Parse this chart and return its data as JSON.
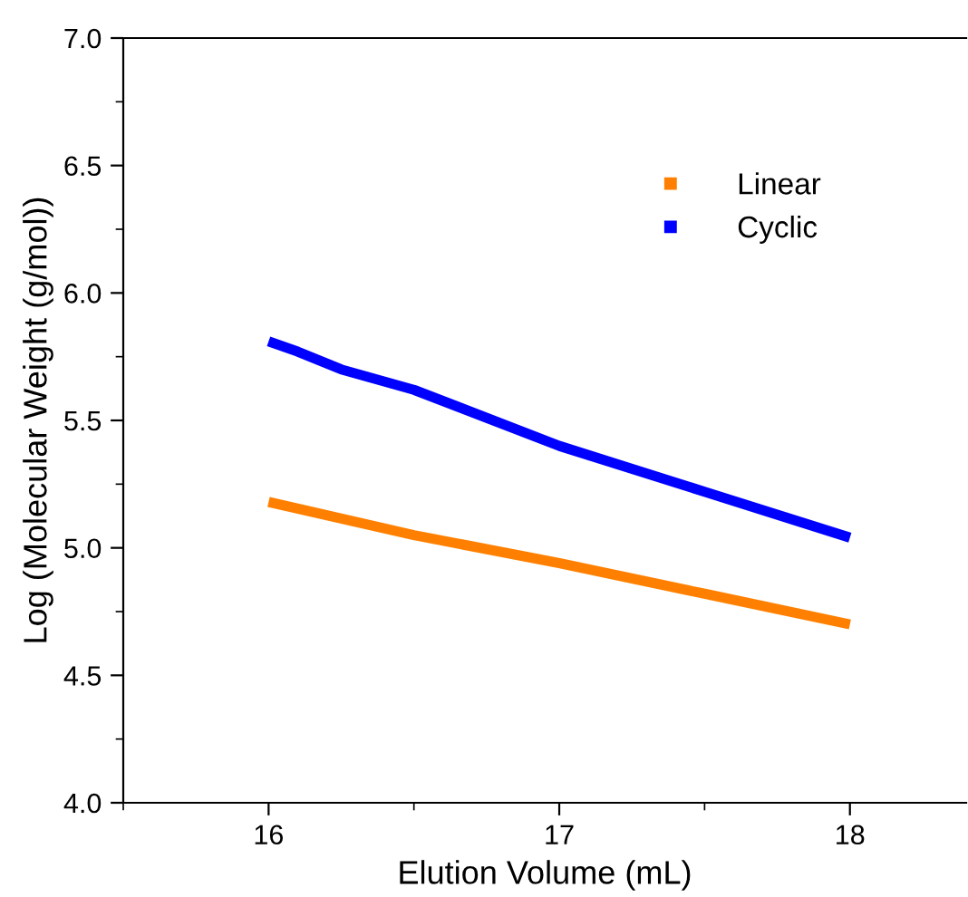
{
  "chart_data": {
    "type": "line",
    "xlabel": "Elution Volume (mL)",
    "ylabel": "Log (Molecular Weight (g/mol))",
    "series": [
      {
        "name": "Linear",
        "color": "#ff8000",
        "x": [
          16,
          16.5,
          17,
          17.5,
          18
        ],
        "values": [
          5.18,
          5.05,
          4.94,
          4.82,
          4.7
        ]
      },
      {
        "name": "Cyclic",
        "color": "#0000ff",
        "x": [
          16,
          16.1,
          16.25,
          16.5,
          17,
          17.5,
          18
        ],
        "values": [
          5.81,
          5.77,
          5.7,
          5.62,
          5.4,
          5.22,
          5.04
        ]
      }
    ],
    "xlim": [
      15.5,
      18.4
    ],
    "xticks": [
      16,
      17,
      18
    ],
    "ylim": [
      4.0,
      7.0
    ],
    "yticks": [
      {
        "value": 4.0,
        "label": "4.0"
      },
      {
        "value": 4.5,
        "label": "4.5"
      },
      {
        "value": 5.0,
        "label": "5.0"
      },
      {
        "value": 5.5,
        "label": "5.5"
      },
      {
        "value": 6.0,
        "label": "6.0"
      },
      {
        "value": 6.5,
        "label": "6.5"
      },
      {
        "value": 7.0,
        "label": "7.0"
      }
    ],
    "grid": false,
    "legend": "top right",
    "line_style": "solid"
  }
}
